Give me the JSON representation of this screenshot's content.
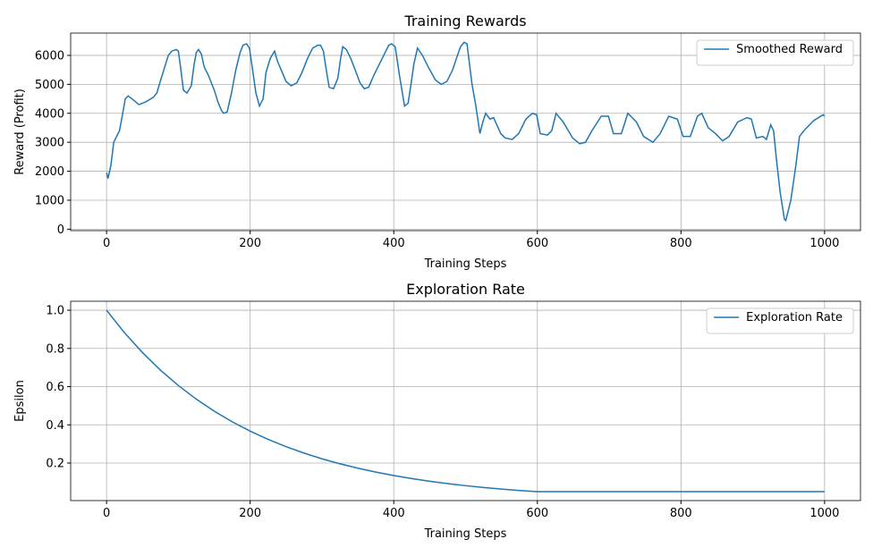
{
  "chart_data": [
    {
      "type": "line",
      "title": "Training Rewards",
      "x_label": "Training Steps",
      "y_label": "Reward (Profit)",
      "xlim": [
        -50,
        1050
      ],
      "ylim": [
        -50,
        6770
      ],
      "xticks": [
        0,
        200,
        400,
        600,
        800,
        1000
      ],
      "yticks": [
        0,
        1000,
        2000,
        3000,
        4000,
        5000,
        6000
      ],
      "grid": true,
      "legend": "upper right",
      "x": [
        0,
        2,
        6,
        10,
        18,
        24,
        26,
        30,
        38,
        45,
        55,
        65,
        70,
        76,
        81,
        86,
        91,
        97,
        100,
        103,
        107,
        112,
        118,
        122,
        125,
        128,
        132,
        136,
        142,
        150,
        155,
        160,
        163,
        168,
        174,
        180,
        186,
        190,
        195,
        199,
        204,
        208,
        213,
        218,
        222,
        228,
        234,
        238,
        244,
        250,
        257,
        265,
        272,
        280,
        287,
        294,
        298,
        302,
        306,
        310,
        316,
        322,
        326,
        329,
        334,
        340,
        347,
        353,
        359,
        365,
        372,
        380,
        388,
        393,
        397,
        402,
        408,
        415,
        420,
        424,
        428,
        433,
        440,
        448,
        458,
        466,
        474,
        482,
        488,
        493,
        498,
        502,
        509,
        514,
        520,
        524,
        528,
        534,
        539,
        549,
        555,
        565,
        574,
        584,
        593,
        599,
        604,
        614,
        620,
        626,
        636,
        649,
        659,
        667,
        676,
        689,
        699,
        706,
        717,
        726,
        738,
        748,
        761,
        771,
        783,
        795,
        803,
        813,
        823,
        829,
        838,
        848,
        858,
        867,
        879,
        892,
        898,
        905,
        914,
        919,
        925,
        929,
        933,
        938,
        944,
        946,
        953,
        960,
        965,
        973,
        985,
        998,
        1000
      ],
      "series": [
        {
          "name": "Smoothed Reward",
          "color": "#1f77b4",
          "values": [
            1950,
            1750,
            2200,
            3000,
            3400,
            4200,
            4500,
            4600,
            4450,
            4300,
            4400,
            4550,
            4700,
            5200,
            5600,
            6000,
            6150,
            6200,
            6150,
            5600,
            4800,
            4700,
            4950,
            5700,
            6100,
            6200,
            6050,
            5600,
            5300,
            4800,
            4400,
            4100,
            4000,
            4050,
            4700,
            5500,
            6100,
            6350,
            6400,
            6250,
            5400,
            4700,
            4250,
            4500,
            5400,
            5900,
            6150,
            5800,
            5450,
            5100,
            4950,
            5050,
            5400,
            5900,
            6250,
            6350,
            6350,
            6150,
            5500,
            4900,
            4850,
            5200,
            5900,
            6300,
            6200,
            5900,
            5450,
            5050,
            4850,
            4900,
            5300,
            5700,
            6100,
            6350,
            6400,
            6300,
            5300,
            4250,
            4350,
            5000,
            5700,
            6250,
            6000,
            5600,
            5150,
            5000,
            5100,
            5500,
            5950,
            6300,
            6450,
            6400,
            5000,
            4300,
            3300,
            3700,
            4000,
            3800,
            3850,
            3300,
            3150,
            3100,
            3300,
            3800,
            4000,
            3950,
            3300,
            3250,
            3400,
            4000,
            3700,
            3150,
            2950,
            3000,
            3400,
            3900,
            3900,
            3300,
            3300,
            4000,
            3700,
            3200,
            3000,
            3300,
            3900,
            3800,
            3200,
            3200,
            3900,
            4000,
            3500,
            3300,
            3050,
            3200,
            3700,
            3850,
            3800,
            3150,
            3200,
            3100,
            3600,
            3400,
            2400,
            1300,
            350,
            300,
            1000,
            2200,
            3200,
            3450,
            3750,
            3950,
            3900
          ]
        }
      ]
    },
    {
      "type": "line",
      "title": "Exploration Rate",
      "x_label": "Training Steps",
      "y_label": "Epsilon",
      "xlim": [
        -50,
        1050
      ],
      "ylim": [
        0.0035,
        1.047
      ],
      "xticks": [
        0,
        200,
        400,
        600,
        800,
        1000
      ],
      "yticks": [
        0.2,
        0.4,
        0.6,
        0.8,
        1.0
      ],
      "grid": true,
      "legend": "upper right",
      "x": [
        0,
        25,
        50,
        75,
        100,
        125,
        150,
        175,
        200,
        225,
        250,
        275,
        300,
        325,
        350,
        375,
        400,
        425,
        450,
        475,
        500,
        525,
        550,
        575,
        600,
        1000
      ],
      "series": [
        {
          "name": "Exploration Rate",
          "color": "#1f77b4",
          "values": [
            1.0,
            0.8822,
            0.7783,
            0.6866,
            0.6058,
            0.5344,
            0.4715,
            0.4159,
            0.367,
            0.3237,
            0.2856,
            0.252,
            0.2223,
            0.1961,
            0.173,
            0.1527,
            0.1347,
            0.1188,
            0.1048,
            0.0925,
            0.0816,
            0.072,
            0.0635,
            0.056,
            0.05,
            0.05
          ]
        }
      ]
    }
  ]
}
